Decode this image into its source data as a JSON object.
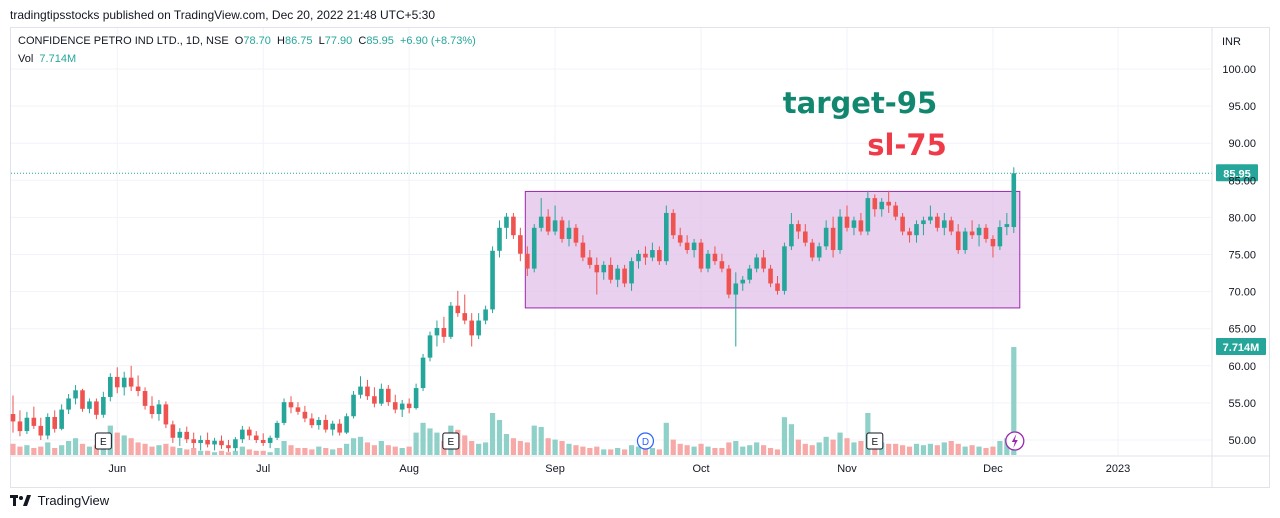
{
  "header": {
    "published_text": "tradingtipsstocks published on TradingView.com, Dec 20, 2022 21:48 UTC+5:30"
  },
  "legend": {
    "symbol": "CONFIDENCE PETRO IND LTD., 1D, NSE",
    "open_label": "O",
    "open_value": "78.70",
    "high_label": "H",
    "high_value": "86.75",
    "low_label": "L",
    "low_value": "77.90",
    "close_label": "C",
    "close_value": "85.95",
    "change": "+6.90 (+8.73%)",
    "vol_label": "Vol",
    "vol_value": "7.714M"
  },
  "footer": {
    "brand": "TradingView"
  },
  "colors": {
    "up": "#26a69a",
    "down": "#ef5350",
    "up_vol": "#8fd0c9",
    "down_vol": "#f7a9a7",
    "box_fill": "#e1bee7",
    "box_stroke": "#9c27b0",
    "target_text": "#12876f",
    "sl_text": "#ef3a47",
    "event_circle": "#2962ff",
    "flash_circle": "#9c27b0"
  },
  "chart_data": {
    "type": "candlestick",
    "currency_label": "INR",
    "y_ticks": [
      "100.00",
      "95.00",
      "90.00",
      "85.00",
      "80.00",
      "75.00",
      "70.00",
      "65.00",
      "60.00",
      "55.00",
      "50.00"
    ],
    "ylim": [
      48.5,
      103
    ],
    "x_labels": [
      "Jun",
      "Jul",
      "Aug",
      "Sep",
      "Oct",
      "Nov",
      "Dec",
      "2023"
    ],
    "last_price": "85.95",
    "last_volume": "7.714M",
    "annotations": [
      {
        "text": "target-95",
        "value": 95
      },
      {
        "text": "sl-75",
        "value": 75
      }
    ],
    "range_box": {
      "top": 83.5,
      "bottom": 67.8
    },
    "events": [
      {
        "label": "E",
        "month": "Jun"
      },
      {
        "label": "E",
        "month": "Aug"
      },
      {
        "label": "D",
        "month": "Sep"
      },
      {
        "label": "E",
        "month": "Nov"
      }
    ],
    "candles": [
      {
        "o": 53.5,
        "h": 56.0,
        "l": 51.0,
        "c": 52.5,
        "v": 0.8
      },
      {
        "o": 52.5,
        "h": 54.0,
        "l": 50.5,
        "c": 51.2,
        "v": 0.6
      },
      {
        "o": 51.2,
        "h": 53.8,
        "l": 50.8,
        "c": 53.0,
        "v": 0.7
      },
      {
        "o": 53.0,
        "h": 54.5,
        "l": 51.5,
        "c": 51.9,
        "v": 0.5
      },
      {
        "o": 51.9,
        "h": 53.0,
        "l": 50.0,
        "c": 50.6,
        "v": 0.6
      },
      {
        "o": 50.6,
        "h": 53.6,
        "l": 50.1,
        "c": 53.1,
        "v": 0.9
      },
      {
        "o": 53.1,
        "h": 54.0,
        "l": 51.0,
        "c": 51.5,
        "v": 0.5
      },
      {
        "o": 51.5,
        "h": 54.8,
        "l": 51.3,
        "c": 54.1,
        "v": 0.7
      },
      {
        "o": 54.1,
        "h": 56.2,
        "l": 53.5,
        "c": 55.6,
        "v": 1.0
      },
      {
        "o": 55.6,
        "h": 57.4,
        "l": 54.8,
        "c": 56.7,
        "v": 1.2
      },
      {
        "o": 56.7,
        "h": 56.9,
        "l": 53.8,
        "c": 54.2,
        "v": 0.8
      },
      {
        "o": 54.2,
        "h": 55.6,
        "l": 53.6,
        "c": 55.2,
        "v": 0.6
      },
      {
        "o": 55.2,
        "h": 55.6,
        "l": 52.8,
        "c": 53.4,
        "v": 0.7
      },
      {
        "o": 53.4,
        "h": 56.5,
        "l": 53.0,
        "c": 55.8,
        "v": 1.1
      },
      {
        "o": 55.8,
        "h": 59.0,
        "l": 55.2,
        "c": 58.5,
        "v": 2.1
      },
      {
        "o": 58.5,
        "h": 59.8,
        "l": 56.3,
        "c": 57.1,
        "v": 1.6
      },
      {
        "o": 57.1,
        "h": 59.2,
        "l": 56.0,
        "c": 58.4,
        "v": 1.4
      },
      {
        "o": 58.4,
        "h": 60.0,
        "l": 56.6,
        "c": 57.2,
        "v": 1.2
      },
      {
        "o": 57.2,
        "h": 58.7,
        "l": 55.9,
        "c": 56.6,
        "v": 0.9
      },
      {
        "o": 56.6,
        "h": 57.1,
        "l": 54.1,
        "c": 54.6,
        "v": 0.8
      },
      {
        "o": 54.6,
        "h": 55.9,
        "l": 52.9,
        "c": 53.5,
        "v": 0.6
      },
      {
        "o": 53.5,
        "h": 55.4,
        "l": 52.6,
        "c": 54.8,
        "v": 0.7
      },
      {
        "o": 54.8,
        "h": 55.2,
        "l": 51.6,
        "c": 52.1,
        "v": 0.8
      },
      {
        "o": 52.1,
        "h": 52.6,
        "l": 49.6,
        "c": 50.3,
        "v": 0.6
      },
      {
        "o": 50.3,
        "h": 51.6,
        "l": 49.2,
        "c": 51.1,
        "v": 0.5
      },
      {
        "o": 51.1,
        "h": 51.8,
        "l": 49.6,
        "c": 50.1,
        "v": 0.4
      },
      {
        "o": 50.1,
        "h": 51.0,
        "l": 48.9,
        "c": 49.6,
        "v": 0.5
      },
      {
        "o": 49.6,
        "h": 50.6,
        "l": 48.6,
        "c": 50.0,
        "v": 0.3
      },
      {
        "o": 50.0,
        "h": 51.0,
        "l": 49.0,
        "c": 49.4,
        "v": 0.3
      },
      {
        "o": 49.4,
        "h": 50.3,
        "l": 48.6,
        "c": 49.9,
        "v": 0.2
      },
      {
        "o": 49.9,
        "h": 50.6,
        "l": 48.8,
        "c": 49.3,
        "v": 0.3
      },
      {
        "o": 49.3,
        "h": 50.0,
        "l": 48.4,
        "c": 48.9,
        "v": 0.2
      },
      {
        "o": 48.9,
        "h": 50.4,
        "l": 48.5,
        "c": 50.1,
        "v": 0.3
      },
      {
        "o": 50.1,
        "h": 51.9,
        "l": 49.6,
        "c": 51.4,
        "v": 0.6
      },
      {
        "o": 51.4,
        "h": 51.8,
        "l": 50.0,
        "c": 50.6,
        "v": 0.4
      },
      {
        "o": 50.6,
        "h": 51.2,
        "l": 49.6,
        "c": 50.0,
        "v": 0.3
      },
      {
        "o": 50.0,
        "h": 50.9,
        "l": 49.2,
        "c": 49.6,
        "v": 0.3
      },
      {
        "o": 49.6,
        "h": 50.6,
        "l": 48.9,
        "c": 50.3,
        "v": 0.2
      },
      {
        "o": 50.3,
        "h": 52.6,
        "l": 50.0,
        "c": 52.3,
        "v": 0.5
      },
      {
        "o": 52.3,
        "h": 55.6,
        "l": 52.0,
        "c": 55.1,
        "v": 1.0
      },
      {
        "o": 55.1,
        "h": 55.9,
        "l": 53.6,
        "c": 54.4,
        "v": 0.7
      },
      {
        "o": 54.4,
        "h": 55.1,
        "l": 53.4,
        "c": 53.8,
        "v": 0.5
      },
      {
        "o": 53.8,
        "h": 54.6,
        "l": 52.4,
        "c": 52.9,
        "v": 0.5
      },
      {
        "o": 52.9,
        "h": 53.6,
        "l": 51.6,
        "c": 52.0,
        "v": 0.4
      },
      {
        "o": 52.0,
        "h": 53.1,
        "l": 51.4,
        "c": 52.7,
        "v": 0.6
      },
      {
        "o": 52.7,
        "h": 53.4,
        "l": 51.0,
        "c": 51.4,
        "v": 0.5
      },
      {
        "o": 51.4,
        "h": 52.6,
        "l": 50.6,
        "c": 52.2,
        "v": 0.4
      },
      {
        "o": 52.2,
        "h": 52.8,
        "l": 50.6,
        "c": 51.0,
        "v": 0.5
      },
      {
        "o": 51.0,
        "h": 53.6,
        "l": 50.8,
        "c": 53.2,
        "v": 0.8
      },
      {
        "o": 53.2,
        "h": 56.6,
        "l": 52.9,
        "c": 56.1,
        "v": 1.2
      },
      {
        "o": 56.1,
        "h": 58.6,
        "l": 55.6,
        "c": 57.2,
        "v": 1.3
      },
      {
        "o": 57.2,
        "h": 58.1,
        "l": 55.4,
        "c": 55.9,
        "v": 0.9
      },
      {
        "o": 55.9,
        "h": 57.1,
        "l": 54.4,
        "c": 54.9,
        "v": 0.7
      },
      {
        "o": 54.9,
        "h": 57.6,
        "l": 54.6,
        "c": 56.9,
        "v": 1.0
      },
      {
        "o": 56.9,
        "h": 57.4,
        "l": 54.6,
        "c": 55.1,
        "v": 0.7
      },
      {
        "o": 55.1,
        "h": 56.1,
        "l": 53.6,
        "c": 54.1,
        "v": 0.6
      },
      {
        "o": 54.1,
        "h": 55.4,
        "l": 53.1,
        "c": 54.9,
        "v": 0.5
      },
      {
        "o": 54.9,
        "h": 55.6,
        "l": 53.6,
        "c": 54.3,
        "v": 0.6
      },
      {
        "o": 54.3,
        "h": 57.6,
        "l": 54.1,
        "c": 57.0,
        "v": 1.6
      },
      {
        "o": 57.0,
        "h": 61.6,
        "l": 56.6,
        "c": 61.1,
        "v": 2.3
      },
      {
        "o": 61.1,
        "h": 64.6,
        "l": 60.6,
        "c": 64.1,
        "v": 1.9
      },
      {
        "o": 64.1,
        "h": 66.1,
        "l": 62.6,
        "c": 65.1,
        "v": 1.6
      },
      {
        "o": 65.1,
        "h": 66.6,
        "l": 63.1,
        "c": 63.9,
        "v": 1.0
      },
      {
        "o": 63.9,
        "h": 68.6,
        "l": 63.6,
        "c": 68.1,
        "v": 2.1
      },
      {
        "o": 68.1,
        "h": 70.1,
        "l": 66.6,
        "c": 67.1,
        "v": 1.8
      },
      {
        "o": 67.1,
        "h": 69.6,
        "l": 65.6,
        "c": 66.1,
        "v": 1.4
      },
      {
        "o": 66.1,
        "h": 67.1,
        "l": 62.6,
        "c": 64.1,
        "v": 1.0
      },
      {
        "o": 64.1,
        "h": 67.1,
        "l": 63.6,
        "c": 66.1,
        "v": 0.8
      },
      {
        "o": 66.1,
        "h": 68.1,
        "l": 65.6,
        "c": 67.6,
        "v": 0.9
      },
      {
        "o": 67.6,
        "h": 76.1,
        "l": 67.1,
        "c": 75.5,
        "v": 3.0
      },
      {
        "o": 75.5,
        "h": 79.6,
        "l": 74.6,
        "c": 78.6,
        "v": 2.5
      },
      {
        "o": 78.6,
        "h": 80.6,
        "l": 77.1,
        "c": 80.1,
        "v": 1.5
      },
      {
        "o": 80.1,
        "h": 80.6,
        "l": 77.1,
        "c": 77.6,
        "v": 1.2
      },
      {
        "o": 77.6,
        "h": 78.6,
        "l": 74.1,
        "c": 75.1,
        "v": 1.0
      },
      {
        "o": 75.1,
        "h": 76.1,
        "l": 72.1,
        "c": 73.1,
        "v": 0.9
      },
      {
        "o": 73.1,
        "h": 79.1,
        "l": 72.6,
        "c": 78.6,
        "v": 2.1
      },
      {
        "o": 78.6,
        "h": 82.6,
        "l": 78.1,
        "c": 80.1,
        "v": 2.0
      },
      {
        "o": 80.1,
        "h": 81.1,
        "l": 77.6,
        "c": 78.1,
        "v": 1.2
      },
      {
        "o": 78.1,
        "h": 81.6,
        "l": 77.6,
        "c": 79.6,
        "v": 1.1
      },
      {
        "o": 79.6,
        "h": 80.1,
        "l": 76.6,
        "c": 77.1,
        "v": 1.0
      },
      {
        "o": 77.1,
        "h": 79.6,
        "l": 76.1,
        "c": 78.6,
        "v": 0.8
      },
      {
        "o": 78.6,
        "h": 79.1,
        "l": 76.1,
        "c": 76.6,
        "v": 0.7
      },
      {
        "o": 76.6,
        "h": 77.6,
        "l": 74.1,
        "c": 74.6,
        "v": 0.6
      },
      {
        "o": 74.6,
        "h": 75.6,
        "l": 73.1,
        "c": 73.6,
        "v": 0.5
      },
      {
        "o": 73.6,
        "h": 74.6,
        "l": 69.6,
        "c": 72.6,
        "v": 0.6
      },
      {
        "o": 72.6,
        "h": 74.1,
        "l": 71.6,
        "c": 73.6,
        "v": 0.4
      },
      {
        "o": 73.6,
        "h": 74.6,
        "l": 71.1,
        "c": 71.6,
        "v": 0.4
      },
      {
        "o": 71.6,
        "h": 73.6,
        "l": 70.6,
        "c": 73.1,
        "v": 0.5
      },
      {
        "o": 73.1,
        "h": 73.6,
        "l": 70.6,
        "c": 71.1,
        "v": 0.4
      },
      {
        "o": 71.1,
        "h": 74.6,
        "l": 70.1,
        "c": 74.1,
        "v": 0.7
      },
      {
        "o": 74.1,
        "h": 75.6,
        "l": 73.1,
        "c": 75.1,
        "v": 0.6
      },
      {
        "o": 75.1,
        "h": 76.1,
        "l": 73.6,
        "c": 74.6,
        "v": 0.5
      },
      {
        "o": 74.6,
        "h": 76.6,
        "l": 74.1,
        "c": 75.6,
        "v": 0.5
      },
      {
        "o": 75.6,
        "h": 76.1,
        "l": 73.6,
        "c": 74.1,
        "v": 0.4
      },
      {
        "o": 74.1,
        "h": 81.6,
        "l": 73.6,
        "c": 80.6,
        "v": 2.3
      },
      {
        "o": 80.6,
        "h": 81.1,
        "l": 77.1,
        "c": 77.6,
        "v": 1.1
      },
      {
        "o": 77.6,
        "h": 78.6,
        "l": 76.1,
        "c": 76.6,
        "v": 0.8
      },
      {
        "o": 76.6,
        "h": 77.6,
        "l": 75.1,
        "c": 75.6,
        "v": 0.7
      },
      {
        "o": 75.6,
        "h": 77.1,
        "l": 74.6,
        "c": 76.6,
        "v": 0.6
      },
      {
        "o": 76.6,
        "h": 77.1,
        "l": 72.6,
        "c": 73.1,
        "v": 0.8
      },
      {
        "o": 73.1,
        "h": 75.6,
        "l": 72.6,
        "c": 75.1,
        "v": 0.6
      },
      {
        "o": 75.1,
        "h": 76.1,
        "l": 73.6,
        "c": 74.1,
        "v": 0.5
      },
      {
        "o": 74.1,
        "h": 75.1,
        "l": 72.6,
        "c": 73.1,
        "v": 0.5
      },
      {
        "o": 73.1,
        "h": 73.6,
        "l": 69.1,
        "c": 69.6,
        "v": 0.9
      },
      {
        "o": 69.6,
        "h": 72.6,
        "l": 62.6,
        "c": 71.1,
        "v": 1.0
      },
      {
        "o": 71.1,
        "h": 72.1,
        "l": 70.1,
        "c": 71.6,
        "v": 0.6
      },
      {
        "o": 71.6,
        "h": 73.6,
        "l": 71.1,
        "c": 73.1,
        "v": 0.7
      },
      {
        "o": 73.1,
        "h": 75.1,
        "l": 72.6,
        "c": 74.6,
        "v": 0.9
      },
      {
        "o": 74.6,
        "h": 75.6,
        "l": 72.6,
        "c": 73.1,
        "v": 0.7
      },
      {
        "o": 73.1,
        "h": 73.6,
        "l": 70.6,
        "c": 71.1,
        "v": 0.5
      },
      {
        "o": 71.1,
        "h": 72.1,
        "l": 69.6,
        "c": 70.1,
        "v": 0.4
      },
      {
        "o": 70.1,
        "h": 76.6,
        "l": 69.6,
        "c": 76.1,
        "v": 2.7
      },
      {
        "o": 76.1,
        "h": 80.6,
        "l": 75.6,
        "c": 79.1,
        "v": 2.2
      },
      {
        "o": 79.1,
        "h": 79.6,
        "l": 77.1,
        "c": 78.1,
        "v": 1.1
      },
      {
        "o": 78.1,
        "h": 79.1,
        "l": 76.1,
        "c": 76.6,
        "v": 0.8
      },
      {
        "o": 76.6,
        "h": 77.1,
        "l": 74.1,
        "c": 74.6,
        "v": 0.7
      },
      {
        "o": 74.6,
        "h": 76.6,
        "l": 74.1,
        "c": 76.1,
        "v": 0.9
      },
      {
        "o": 76.1,
        "h": 79.6,
        "l": 75.6,
        "c": 78.6,
        "v": 1.3
      },
      {
        "o": 78.6,
        "h": 80.1,
        "l": 74.6,
        "c": 75.6,
        "v": 1.1
      },
      {
        "o": 75.6,
        "h": 81.1,
        "l": 75.1,
        "c": 80.1,
        "v": 1.6
      },
      {
        "o": 80.1,
        "h": 81.6,
        "l": 78.1,
        "c": 78.6,
        "v": 1.2
      },
      {
        "o": 78.6,
        "h": 80.1,
        "l": 77.6,
        "c": 79.6,
        "v": 0.9
      },
      {
        "o": 79.6,
        "h": 80.6,
        "l": 77.6,
        "c": 78.1,
        "v": 1.0
      },
      {
        "o": 78.1,
        "h": 83.6,
        "l": 77.6,
        "c": 82.6,
        "v": 3.0
      },
      {
        "o": 82.6,
        "h": 83.1,
        "l": 80.1,
        "c": 81.1,
        "v": 1.2
      },
      {
        "o": 81.1,
        "h": 82.6,
        "l": 80.1,
        "c": 82.1,
        "v": 0.9
      },
      {
        "o": 82.1,
        "h": 83.6,
        "l": 80.6,
        "c": 81.6,
        "v": 0.8
      },
      {
        "o": 81.6,
        "h": 82.1,
        "l": 79.6,
        "c": 80.1,
        "v": 0.8
      },
      {
        "o": 80.1,
        "h": 80.6,
        "l": 77.6,
        "c": 78.1,
        "v": 0.7
      },
      {
        "o": 78.1,
        "h": 78.6,
        "l": 76.6,
        "c": 77.6,
        "v": 0.6
      },
      {
        "o": 77.6,
        "h": 79.6,
        "l": 76.6,
        "c": 79.1,
        "v": 0.8
      },
      {
        "o": 79.1,
        "h": 80.1,
        "l": 77.6,
        "c": 79.6,
        "v": 0.7
      },
      {
        "o": 79.6,
        "h": 81.6,
        "l": 79.1,
        "c": 80.1,
        "v": 0.8
      },
      {
        "o": 80.1,
        "h": 80.6,
        "l": 78.1,
        "c": 78.6,
        "v": 0.7
      },
      {
        "o": 78.6,
        "h": 80.6,
        "l": 77.6,
        "c": 79.6,
        "v": 0.9
      },
      {
        "o": 79.6,
        "h": 80.1,
        "l": 77.6,
        "c": 78.1,
        "v": 1.0
      },
      {
        "o": 78.1,
        "h": 79.1,
        "l": 75.1,
        "c": 75.6,
        "v": 0.8
      },
      {
        "o": 75.6,
        "h": 78.6,
        "l": 75.1,
        "c": 78.1,
        "v": 0.6
      },
      {
        "o": 78.1,
        "h": 79.6,
        "l": 77.1,
        "c": 77.6,
        "v": 0.7
      },
      {
        "o": 77.6,
        "h": 79.1,
        "l": 76.1,
        "c": 78.6,
        "v": 0.6
      },
      {
        "o": 78.6,
        "h": 79.1,
        "l": 76.6,
        "c": 77.1,
        "v": 0.5
      },
      {
        "o": 77.1,
        "h": 77.6,
        "l": 74.6,
        "c": 76.1,
        "v": 0.6
      },
      {
        "o": 76.1,
        "h": 79.6,
        "l": 75.6,
        "c": 78.7,
        "v": 1.0
      },
      {
        "o": 78.7,
        "h": 80.6,
        "l": 77.6,
        "c": 79.1,
        "v": 1.2
      },
      {
        "o": 78.7,
        "h": 86.75,
        "l": 77.9,
        "c": 85.95,
        "v": 7.714
      }
    ]
  }
}
